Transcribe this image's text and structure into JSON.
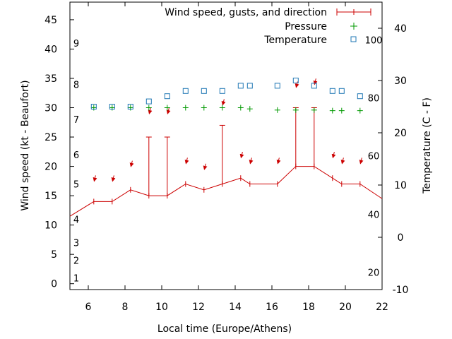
{
  "chart_data": {
    "type": "line",
    "xlabel": "Local time (Europe/Athens)",
    "ylabel": "Wind speed (kt - Beaufort)",
    "y2label": "Temperature (C - F)",
    "xlim": [
      5,
      22
    ],
    "ylim": [
      -1,
      48
    ],
    "y2lim": [
      -10,
      45
    ],
    "xticks": [
      6,
      8,
      10,
      12,
      14,
      16,
      18,
      20,
      22
    ],
    "yticks": [
      0,
      5,
      10,
      15,
      20,
      25,
      30,
      35,
      40,
      45
    ],
    "y2ticks": [
      -10,
      0,
      10,
      20,
      30,
      40
    ],
    "grid": false,
    "legend_position": "top-right",
    "legend": [
      {
        "label": "Wind speed, gusts, and direction",
        "color": "#cc0000",
        "marker": "errorbar"
      },
      {
        "label": "Pressure",
        "color": "#009900",
        "marker": "plus"
      },
      {
        "label": "Temperature",
        "color": "#1f77b4",
        "marker": "square"
      }
    ],
    "beaufort_labels": [
      {
        "text": "1",
        "wind": 1
      },
      {
        "text": "2",
        "wind": 4
      },
      {
        "text": "3",
        "wind": 7
      },
      {
        "text": "4",
        "wind": 11
      },
      {
        "text": "5",
        "wind": 17
      },
      {
        "text": "6",
        "wind": 22
      },
      {
        "text": "7",
        "wind": 28
      },
      {
        "text": "8",
        "wind": 34
      },
      {
        "text": "9",
        "wind": 41
      }
    ],
    "fahrenheit_labels": [
      {
        "text": "20",
        "temp": -6.7
      },
      {
        "text": "40",
        "temp": 4.4
      },
      {
        "text": "60",
        "temp": 15.6
      },
      {
        "text": "80",
        "temp": 26.7
      },
      {
        "text": "100",
        "temp": 37.8
      }
    ],
    "wind_speed": {
      "name": "Wind speed, gusts, and direction",
      "color": "#cc0000",
      "x": [
        5,
        6.3,
        7.3,
        8.3,
        9.3,
        10.3,
        11.3,
        12.3,
        13.3,
        14.3,
        14.8,
        16.3,
        17.3,
        18.3,
        19.3,
        19.8,
        20.8,
        22
      ],
      "y": [
        11.5,
        14,
        14,
        16,
        15,
        15,
        17,
        16,
        17,
        18,
        17,
        17,
        20,
        20,
        18,
        17,
        17,
        14.5
      ],
      "gusts": [
        {
          "x": 9.3,
          "y": 25
        },
        {
          "x": 10.3,
          "y": 25
        },
        {
          "x": 13.3,
          "y": 27
        },
        {
          "x": 17.3,
          "y": 30
        },
        {
          "x": 18.3,
          "y": 30
        }
      ]
    },
    "wind_direction_arrows": {
      "color": "#cc0000",
      "points": [
        {
          "x": 6.4,
          "y": 17.5,
          "dx": -0.1,
          "dy": -1.5
        },
        {
          "x": 7.4,
          "y": 17.5,
          "dx": -0.1,
          "dy": -1.5
        },
        {
          "x": 8.4,
          "y": 20,
          "dx": 0.1,
          "dy": -1.5
        },
        {
          "x": 9.4,
          "y": 29,
          "dx": 0.1,
          "dy": -1.5
        },
        {
          "x": 10.4,
          "y": 29,
          "dx": 0,
          "dy": -1.5
        },
        {
          "x": 11.4,
          "y": 20.5,
          "dx": -0.2,
          "dy": 1.5
        },
        {
          "x": 12.4,
          "y": 19.5,
          "dx": 0.1,
          "dy": -1.5
        },
        {
          "x": 13.4,
          "y": 30.5,
          "dx": 0,
          "dy": 1.5
        },
        {
          "x": 14.4,
          "y": 21.5,
          "dx": -0.1,
          "dy": 1.5
        },
        {
          "x": 14.9,
          "y": 20.5,
          "dx": -0.2,
          "dy": 1.5
        },
        {
          "x": 16.4,
          "y": 20.5,
          "dx": -0.2,
          "dy": 1.5
        },
        {
          "x": 17.4,
          "y": 33.5,
          "dx": -0.3,
          "dy": 1.5
        },
        {
          "x": 18.4,
          "y": 34,
          "dx": -0.3,
          "dy": 1.5
        },
        {
          "x": 19.4,
          "y": 21.5,
          "dx": -0.3,
          "dy": 1.5
        },
        {
          "x": 19.9,
          "y": 20.5,
          "dx": -0.2,
          "dy": 1.5
        },
        {
          "x": 20.9,
          "y": 20.5,
          "dx": -0.2,
          "dy": 1.5
        }
      ]
    },
    "pressure": {
      "name": "Pressure",
      "color": "#009900",
      "x": [
        6.3,
        7.3,
        8.3,
        9.3,
        10.3,
        11.3,
        12.3,
        13.3,
        14.3,
        14.8,
        16.3,
        17.3,
        18.3,
        19.3,
        19.8,
        20.8
      ],
      "y": [
        30,
        30,
        30,
        30,
        30,
        30,
        30,
        30,
        30,
        29.8,
        29.6,
        29.6,
        29.6,
        29.5,
        29.5,
        29.5
      ]
    },
    "temperature": {
      "name": "Temperature",
      "color": "#1f77b4",
      "x": [
        6.3,
        7.3,
        8.3,
        9.3,
        10.3,
        11.3,
        12.3,
        13.3,
        14.3,
        14.8,
        16.3,
        17.3,
        18.3,
        19.3,
        19.8,
        20.8
      ],
      "y": [
        25,
        25,
        25,
        26,
        27,
        28,
        28,
        28,
        29,
        29,
        29,
        30,
        29,
        28,
        28,
        27
      ]
    }
  }
}
